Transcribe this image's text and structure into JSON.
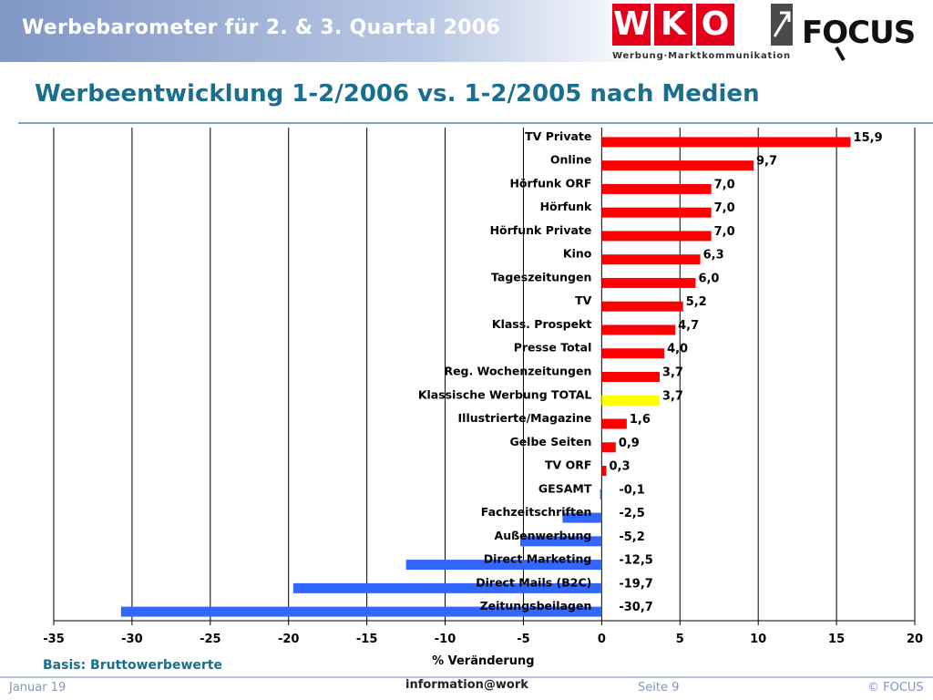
{
  "header": {
    "title": "Werbebarometer für 2. & 3. Quartal 2006",
    "wko_letters": [
      "W",
      "K",
      "O"
    ],
    "wko_sub": "Werbung·Marktkommunikation",
    "focus_logo": "FOCUS",
    "arrow_icon": "arrow-up-right-icon",
    "colors": {
      "wko_red": "#e3001b",
      "header_blue": "#7f97c6"
    }
  },
  "slide": {
    "title": "Werbeentwicklung 1-2/2006 vs. 1-2/2005 nach Medien",
    "basis": "Basis: Bruttowerbewerte"
  },
  "footer": {
    "left": "Januar 19",
    "center": "information@work",
    "page": "Seite 9",
    "copyright": "© FOCUS"
  },
  "chart_data": {
    "type": "bar",
    "orientation": "horizontal",
    "categories": [
      "TV Private",
      "Online",
      "Hörfunk ORF",
      "Hörfunk",
      "Hörfunk Private",
      "Kino",
      "Tageszeitungen",
      "TV",
      "Klass. Prospekt",
      "Presse Total",
      "Reg. Wochenzeitungen",
      "Klassische Werbung TOTAL",
      "Illustrierte/Magazine",
      "Gelbe Seiten",
      "TV ORF",
      "GESAMT",
      "Fachzeitschriften",
      "Außenwerbung",
      "Direct Marketing",
      "Direct Mails (B2C)",
      "Zeitungsbeilagen"
    ],
    "values": [
      15.9,
      9.7,
      7.0,
      7.0,
      7.0,
      6.3,
      6.0,
      5.2,
      4.7,
      4.0,
      3.7,
      3.7,
      1.6,
      0.9,
      0.3,
      -0.1,
      -2.5,
      -5.2,
      -12.5,
      -19.7,
      -30.7
    ],
    "value_labels": [
      "15,9",
      "9,7",
      "7,0",
      "7,0",
      "7,0",
      "6,3",
      "6,0",
      "5,2",
      "4,7",
      "4,0",
      "3,7",
      "3,7",
      "1,6",
      "0,9",
      "0,3",
      "-0,1",
      "-2,5",
      "-5,2",
      "-12,5",
      "-19,7",
      "-30,7"
    ],
    "highlight_category": "Klassische Werbung TOTAL",
    "xlabel": "% Veränderung",
    "xlim": [
      -35,
      20
    ],
    "xticks": [
      -35,
      -30,
      -25,
      -20,
      -15,
      -10,
      -5,
      0,
      5,
      10,
      15,
      20
    ],
    "grid": "vertical",
    "colors": {
      "positive": "#ff0000",
      "negative": "#3366ff",
      "highlight": "#ffff00"
    }
  }
}
